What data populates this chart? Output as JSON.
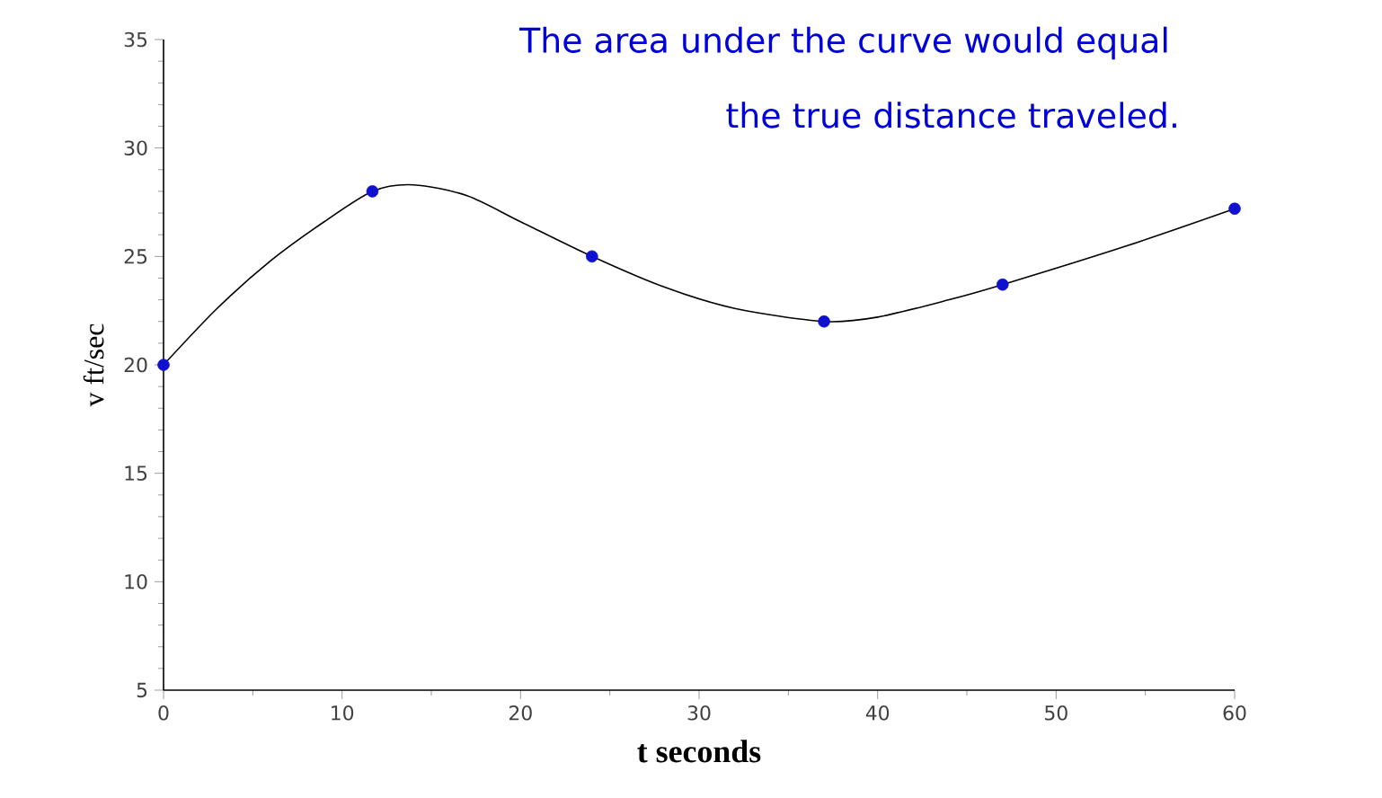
{
  "chart_data": {
    "type": "line",
    "xlabel": "t seconds",
    "ylabel": "v ft/sec",
    "annotations": [
      "The area under the curve would equal",
      "the true distance traveled."
    ],
    "xlim": [
      0,
      60
    ],
    "ylim": [
      5,
      35
    ],
    "xticks": [
      0,
      10,
      20,
      30,
      40,
      50,
      60
    ],
    "yticks": [
      5,
      10,
      15,
      20,
      25,
      30,
      35
    ],
    "grid": false,
    "series": [
      {
        "color": "#000000",
        "marker": "none",
        "x": [
          0,
          3,
          6,
          9,
          11.7,
          14,
          17,
          20,
          24,
          28,
          32,
          37,
          40,
          44,
          47,
          54,
          60
        ],
        "values": [
          20,
          22.6,
          24.8,
          26.6,
          28,
          28.3,
          27.8,
          26.6,
          25,
          23.6,
          22.6,
          22,
          22.2,
          23,
          23.7,
          25.5,
          27.2
        ]
      },
      {
        "type": "scatter",
        "color": "#1010d0",
        "marker": "circle",
        "x": [
          0,
          11.7,
          24,
          37,
          47,
          60
        ],
        "values": [
          20,
          28,
          25,
          22,
          23.7,
          27.2
        ]
      }
    ]
  }
}
